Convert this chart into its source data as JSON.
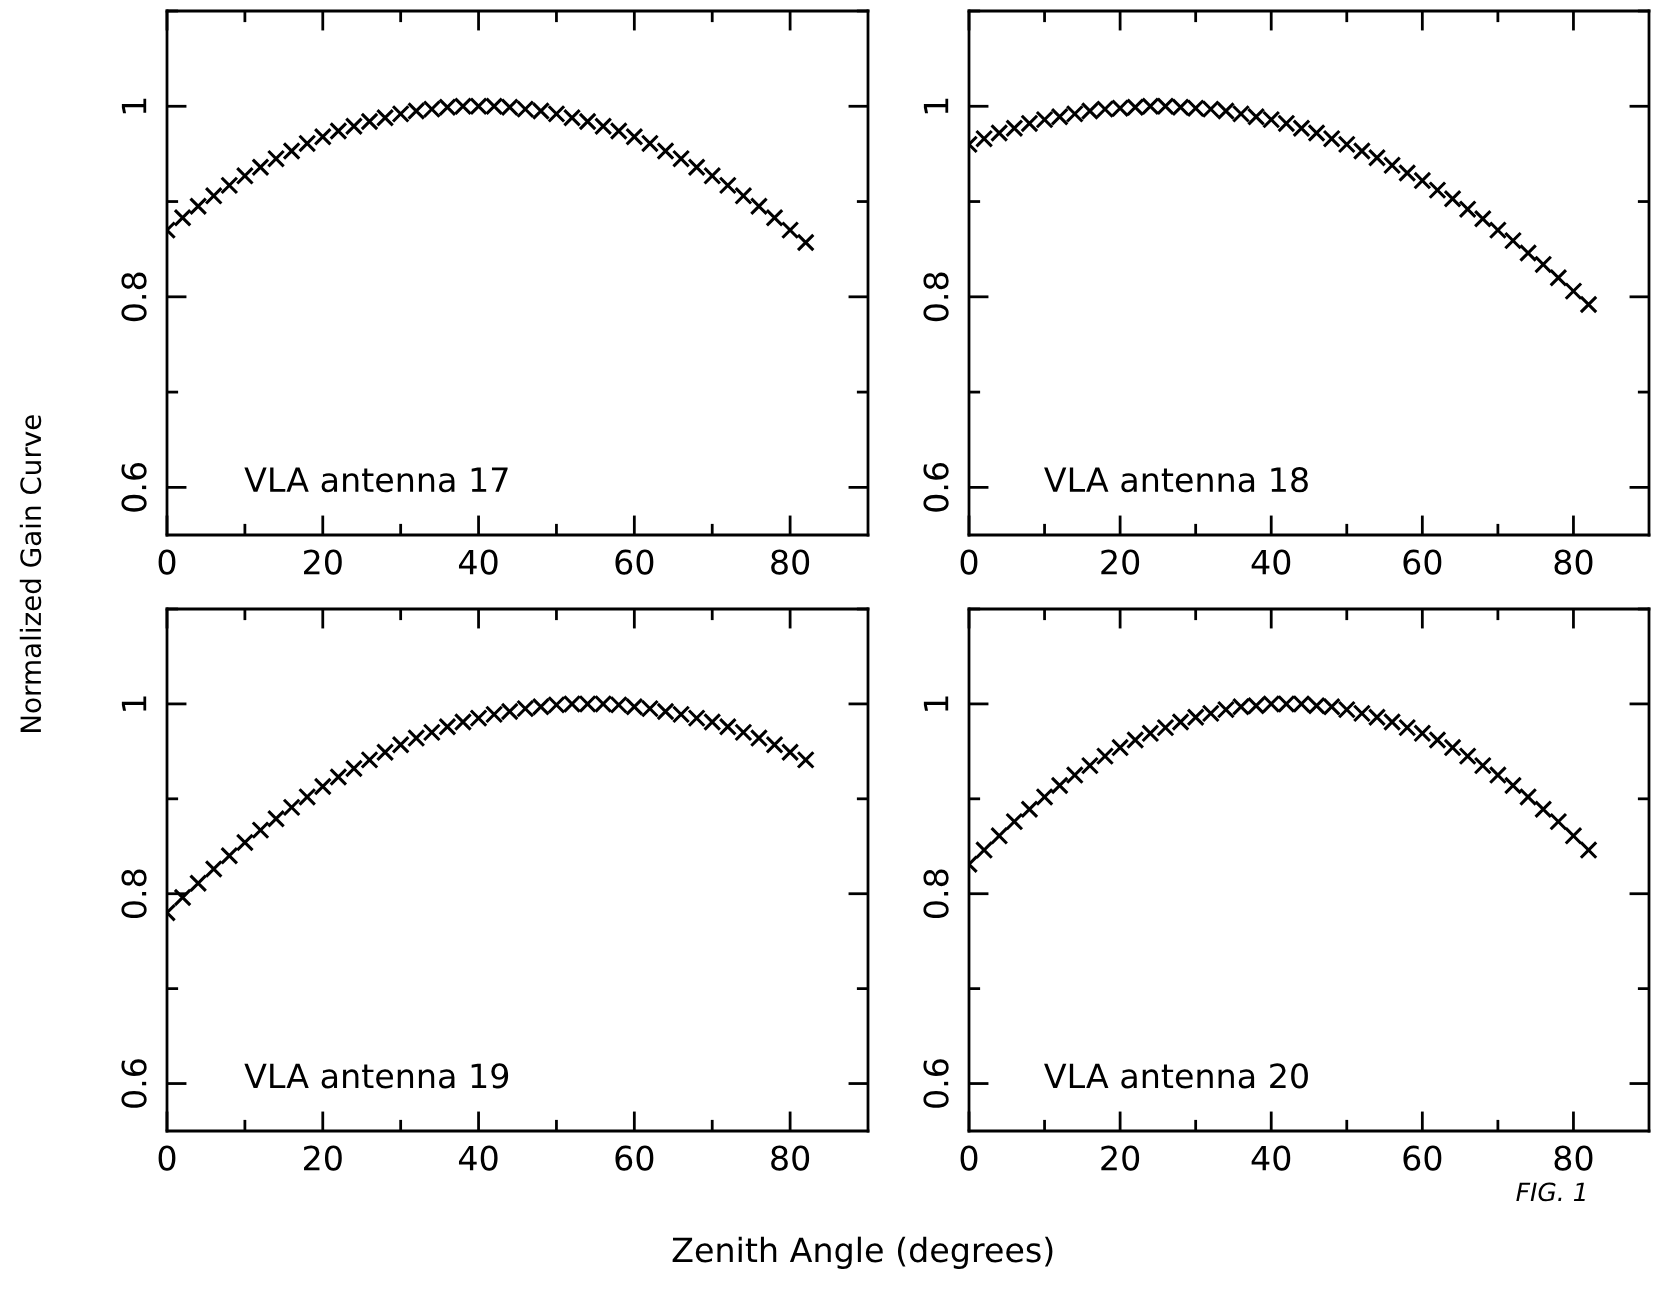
{
  "chart_data": [
    {
      "type": "scatter",
      "ylabel": "Normalized Gain Curve",
      "annotations": [
        "VLA antenna 17"
      ],
      "marker": "cross",
      "grid": false,
      "xlim": [
        0,
        90
      ],
      "ylim": [
        0.55,
        1.1
      ],
      "xticks": [
        0,
        {
          "value": 10,
          "label": null
        },
        20,
        {
          "value": 30,
          "label": null
        },
        40,
        {
          "value": 50,
          "label": null
        },
        60,
        {
          "value": 70,
          "label": null
        },
        80
      ],
      "yticks": [
        {
          "value": 0.6,
          "label": "0.6"
        },
        {
          "value": 0.7,
          "label": null
        },
        {
          "value": 0.8,
          "label": "0.8"
        },
        {
          "value": 0.9,
          "label": null
        },
        {
          "value": 1,
          "label": "1"
        },
        {
          "value": 1.1,
          "label": null
        }
      ],
      "x": [
        0,
        2,
        4,
        6,
        8,
        10,
        12,
        14,
        16,
        18,
        20,
        22,
        24,
        26,
        28,
        30,
        32,
        34,
        36,
        38,
        40,
        42,
        44,
        46,
        48,
        50,
        52,
        54,
        56,
        58,
        60,
        62,
        64,
        66,
        68,
        70,
        72,
        74,
        76,
        78,
        80,
        82
      ],
      "series": [
        {
          "color": "#000000",
          "values": [
            0.87,
            0.883,
            0.895,
            0.906,
            0.917,
            0.927,
            0.936,
            0.945,
            0.953,
            0.961,
            0.968,
            0.974,
            0.979,
            0.984,
            0.988,
            0.992,
            0.995,
            0.997,
            0.999,
            1.0,
            1.0,
            1.0,
            0.999,
            0.997,
            0.995,
            0.992,
            0.988,
            0.984,
            0.979,
            0.974,
            0.968,
            0.961,
            0.953,
            0.945,
            0.936,
            0.927,
            0.917,
            0.906,
            0.895,
            0.883,
            0.87,
            0.857
          ]
        }
      ]
    },
    {
      "type": "scatter",
      "annotations": [
        "VLA antenna 18"
      ],
      "marker": "cross",
      "grid": false,
      "xlim": [
        0,
        90
      ],
      "ylim": [
        0.55,
        1.1
      ],
      "xticks": [
        0,
        {
          "value": 10,
          "label": null
        },
        20,
        {
          "value": 30,
          "label": null
        },
        40,
        {
          "value": 50,
          "label": null
        },
        60,
        {
          "value": 70,
          "label": null
        },
        80
      ],
      "yticks": [
        {
          "value": 0.6,
          "label": "0.6"
        },
        {
          "value": 0.7,
          "label": null
        },
        {
          "value": 0.8,
          "label": "0.8"
        },
        {
          "value": 0.9,
          "label": null
        },
        {
          "value": 1,
          "label": "1"
        },
        {
          "value": 1.1,
          "label": null
        }
      ],
      "x": [
        0,
        2,
        4,
        6,
        8,
        10,
        12,
        14,
        16,
        18,
        20,
        22,
        24,
        26,
        28,
        30,
        32,
        34,
        36,
        38,
        40,
        42,
        44,
        46,
        48,
        50,
        52,
        54,
        56,
        58,
        60,
        62,
        64,
        66,
        68,
        70,
        72,
        74,
        76,
        78,
        80,
        82
      ],
      "series": [
        {
          "color": "#000000",
          "values": [
            0.96,
            0.966,
            0.972,
            0.977,
            0.982,
            0.986,
            0.989,
            0.992,
            0.995,
            0.997,
            0.998,
            0.999,
            1.0,
            1.0,
            0.999,
            0.998,
            0.997,
            0.995,
            0.992,
            0.989,
            0.986,
            0.982,
            0.977,
            0.972,
            0.966,
            0.96,
            0.953,
            0.946,
            0.938,
            0.93,
            0.922,
            0.912,
            0.903,
            0.892,
            0.882,
            0.87,
            0.859,
            0.846,
            0.834,
            0.82,
            0.806,
            0.792
          ]
        }
      ]
    },
    {
      "type": "scatter",
      "xlabel": "Zenith Angle (degrees)",
      "annotations": [
        "VLA antenna 19"
      ],
      "marker": "cross",
      "grid": false,
      "xlim": [
        0,
        90
      ],
      "ylim": [
        0.55,
        1.1
      ],
      "xticks": [
        0,
        {
          "value": 10,
          "label": null
        },
        20,
        {
          "value": 30,
          "label": null
        },
        40,
        {
          "value": 50,
          "label": null
        },
        60,
        {
          "value": 70,
          "label": null
        },
        80
      ],
      "yticks": [
        {
          "value": 0.6,
          "label": "0.6"
        },
        {
          "value": 0.7,
          "label": null
        },
        {
          "value": 0.8,
          "label": "0.8"
        },
        {
          "value": 0.9,
          "label": null
        },
        {
          "value": 1,
          "label": "1"
        },
        {
          "value": 1.1,
          "label": null
        }
      ],
      "x": [
        0,
        2,
        4,
        6,
        8,
        10,
        12,
        14,
        16,
        18,
        20,
        22,
        24,
        26,
        28,
        30,
        32,
        34,
        36,
        38,
        40,
        42,
        44,
        46,
        48,
        50,
        52,
        54,
        56,
        58,
        60,
        62,
        64,
        66,
        68,
        70,
        72,
        74,
        76,
        78,
        80,
        82
      ],
      "series": [
        {
          "color": "#000000",
          "values": [
            0.78,
            0.796,
            0.811,
            0.826,
            0.84,
            0.854,
            0.867,
            0.879,
            0.891,
            0.902,
            0.913,
            0.923,
            0.932,
            0.941,
            0.949,
            0.957,
            0.964,
            0.97,
            0.976,
            0.981,
            0.985,
            0.989,
            0.992,
            0.995,
            0.997,
            0.999,
            1.0,
            1.0,
            1.0,
            0.999,
            0.997,
            0.995,
            0.992,
            0.989,
            0.985,
            0.981,
            0.976,
            0.97,
            0.964,
            0.957,
            0.949,
            0.941
          ]
        }
      ]
    },
    {
      "type": "scatter",
      "annotations": [
        "VLA antenna 20",
        "FIG. 1"
      ],
      "marker": "cross",
      "grid": false,
      "xlim": [
        0,
        90
      ],
      "ylim": [
        0.55,
        1.1
      ],
      "xticks": [
        0,
        {
          "value": 10,
          "label": null
        },
        20,
        {
          "value": 30,
          "label": null
        },
        40,
        {
          "value": 50,
          "label": null
        },
        60,
        {
          "value": 70,
          "label": null
        },
        80
      ],
      "yticks": [
        {
          "value": 0.6,
          "label": "0.6"
        },
        {
          "value": 0.7,
          "label": null
        },
        {
          "value": 0.8,
          "label": "0.8"
        },
        {
          "value": 0.9,
          "label": null
        },
        {
          "value": 1,
          "label": "1"
        },
        {
          "value": 1.1,
          "label": null
        }
      ],
      "x": [
        0,
        2,
        4,
        6,
        8,
        10,
        12,
        14,
        16,
        18,
        20,
        22,
        24,
        26,
        28,
        30,
        32,
        34,
        36,
        38,
        40,
        42,
        44,
        46,
        48,
        50,
        52,
        54,
        56,
        58,
        60,
        62,
        64,
        66,
        68,
        70,
        72,
        74,
        76,
        78,
        80,
        82
      ],
      "series": [
        {
          "color": "#000000",
          "values": [
            0.831,
            0.846,
            0.861,
            0.876,
            0.889,
            0.902,
            0.914,
            0.925,
            0.935,
            0.945,
            0.954,
            0.962,
            0.969,
            0.975,
            0.981,
            0.986,
            0.99,
            0.994,
            0.997,
            0.998,
            1.0,
            1.0,
            1.0,
            0.998,
            0.997,
            0.994,
            0.99,
            0.986,
            0.981,
            0.975,
            0.969,
            0.962,
            0.954,
            0.945,
            0.935,
            0.925,
            0.914,
            0.902,
            0.889,
            0.876,
            0.861,
            0.846
          ]
        }
      ]
    }
  ]
}
